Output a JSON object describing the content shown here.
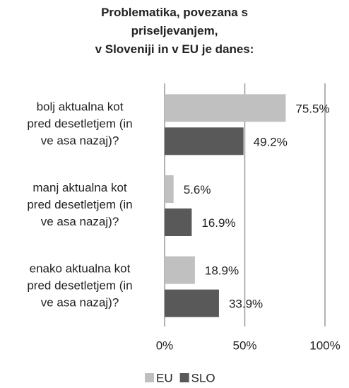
{
  "chart_data": {
    "type": "bar",
    "orientation": "horizontal",
    "title": "Problematika, povezana s\npriseljevanjem,\nv Sloveniji in v EU je danes:",
    "categories": [
      "bolj aktualna kot\npred desetletjem (in\nve    asa nazaj)?",
      "manj aktualna kot\npred desetletjem (in\nve    asa nazaj)?",
      "enako aktualna kot\npred desetletjem (in\nve    asa nazaj)?"
    ],
    "series": [
      {
        "name": "EU",
        "color": "#c0c0c0",
        "values": [
          75.5,
          5.6,
          18.9
        ],
        "value_labels": [
          "75.5%",
          "5.6%",
          "18.9%"
        ]
      },
      {
        "name": "SLO",
        "color": "#595959",
        "values": [
          49.2,
          16.9,
          33.9
        ],
        "value_labels": [
          "49.2%",
          "16.9%",
          "33.9%"
        ]
      }
    ],
    "xlim": [
      0,
      100
    ],
    "xticks": [
      {
        "value": 0,
        "label": "0%"
      },
      {
        "value": 50,
        "label": "50%"
      },
      {
        "value": 100,
        "label": "100%"
      }
    ],
    "grid": true,
    "legend": "bottom"
  }
}
